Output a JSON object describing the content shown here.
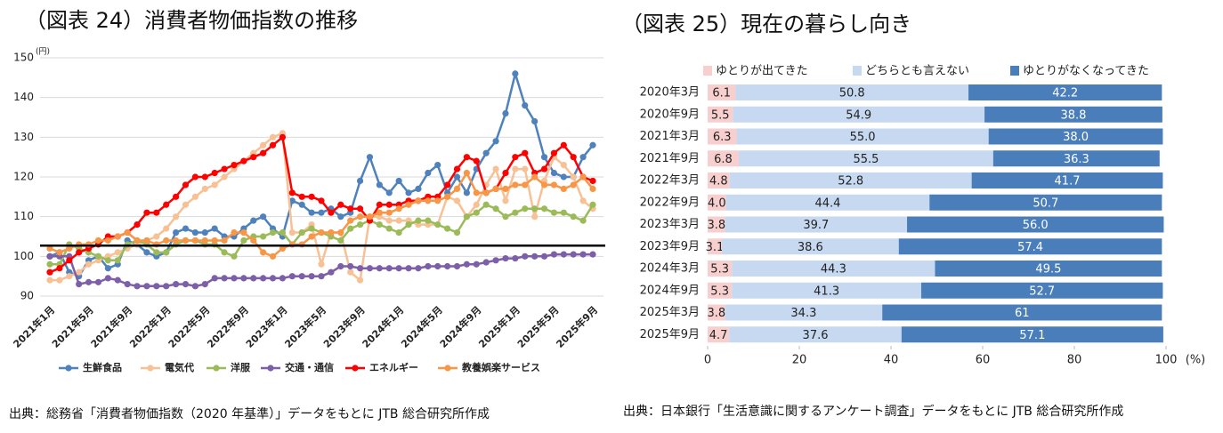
{
  "chart_data": [
    {
      "type": "line",
      "title": "（図表 24）消費者物価指数の推移",
      "note": "出典：総務省「消費者物価指数（2020 年基準）」データをもとに JTB 総合研究所作成",
      "y_unit": "(円)",
      "categories": [
        "2021年1月",
        null,
        null,
        null,
        "2021年5月",
        null,
        null,
        null,
        "2021年9月",
        null,
        null,
        null,
        "2022年1月",
        null,
        null,
        null,
        "2022年5月",
        null,
        null,
        null,
        "2022年9月",
        null,
        null,
        null,
        "2023年1月",
        null,
        null,
        null,
        "2023年5月",
        null,
        null,
        null,
        "2023年9月",
        null,
        null,
        null,
        "2024年1月",
        null,
        null,
        null,
        "2024年5月",
        null,
        null,
        null,
        "2024年9月",
        null,
        null,
        null,
        "2025年1月",
        null,
        null,
        null,
        "2025年5月",
        null,
        null,
        null,
        "2025年9月"
      ],
      "ylim": [
        90,
        150
      ],
      "yticks": [
        90,
        100,
        110,
        120,
        130,
        140,
        150
      ],
      "grid": true,
      "reference_line": 102.7,
      "legend": "bottom",
      "series": [
        {
          "name": "生鮮食品",
          "color": "#4f81bd",
          "values": [
            100,
            101,
            96,
            95,
            99,
            100,
            97,
            98,
            104,
            103,
            101,
            100,
            101,
            106,
            107,
            106,
            106,
            107,
            105,
            105,
            107,
            109,
            110,
            107,
            105,
            114,
            113,
            111,
            111,
            112,
            110,
            111,
            119,
            125,
            118,
            116,
            119,
            116,
            117,
            121,
            123,
            116,
            120,
            116,
            122,
            126,
            129,
            136,
            146,
            138,
            134,
            125,
            121,
            120,
            120,
            125,
            128
          ]
        },
        {
          "name": "電気代",
          "color": "#f7c195",
          "values": [
            94,
            94,
            95,
            96,
            98,
            99,
            100,
            101,
            102,
            103,
            104,
            105,
            107,
            110,
            113,
            115,
            117,
            118,
            120,
            122,
            124,
            126,
            128,
            130,
            131,
            106,
            106,
            108,
            98,
            106,
            106,
            96,
            94,
            110,
            110,
            109,
            109,
            109,
            108,
            108,
            108,
            115,
            114,
            110,
            113,
            118,
            122,
            114,
            122,
            122,
            110,
            119,
            125,
            123,
            120,
            114,
            112
          ]
        },
        {
          "name": "洋服",
          "color": "#9bbb59",
          "values": [
            98,
            98,
            103,
            102,
            101,
            100,
            99,
            99,
            103,
            104,
            103,
            101,
            101,
            103,
            104,
            104,
            103,
            103,
            101,
            100,
            104,
            105,
            105,
            106,
            106,
            103,
            106,
            107,
            106,
            105,
            104,
            107,
            108,
            109,
            108,
            107,
            106,
            108,
            109,
            109,
            108,
            107,
            106,
            110,
            111,
            113,
            112,
            110,
            111,
            112,
            112,
            112,
            111,
            111,
            110,
            109,
            113
          ]
        },
        {
          "name": "交通・通信",
          "color": "#7c5fa8",
          "values": [
            100,
            100,
            100,
            93,
            93.5,
            93.5,
            94.5,
            94,
            93,
            92.5,
            92.5,
            92.5,
            92.5,
            93,
            93,
            92.5,
            93,
            94.5,
            94.5,
            94.5,
            94.5,
            94.5,
            94.5,
            94.5,
            94.5,
            95,
            95,
            95,
            95,
            96,
            97.5,
            97.5,
            97,
            97,
            97,
            97,
            97,
            97,
            97,
            97.5,
            97.5,
            97.5,
            97.5,
            98,
            98,
            98.5,
            99,
            99.5,
            99.5,
            100,
            100,
            100,
            100.5,
            100.5,
            100.5,
            100.5,
            100.5
          ]
        },
        {
          "name": "エネルギー",
          "color": "#ff0000",
          "values": [
            96,
            97,
            99,
            101,
            102,
            103,
            105,
            105,
            106,
            108,
            111,
            111,
            113,
            115,
            118,
            120,
            120,
            121,
            122,
            123,
            124,
            125,
            126,
            128,
            130,
            116,
            115,
            115,
            114,
            111,
            113,
            112,
            112,
            109,
            113,
            113,
            113,
            114,
            114,
            115,
            115,
            118,
            122,
            125,
            124,
            116,
            117,
            121,
            125,
            126,
            121,
            122,
            126,
            128,
            125,
            120,
            119
          ]
        },
        {
          "name": "教養娯楽サービス",
          "color": "#f79646",
          "values": [
            102,
            101,
            102,
            103,
            103,
            104,
            104,
            105,
            106,
            104,
            104,
            103,
            104,
            104,
            104,
            104,
            104,
            104,
            104,
            106,
            106,
            104,
            101,
            100,
            102,
            103,
            103,
            105,
            106,
            106,
            106,
            109,
            110,
            110,
            111,
            111,
            112,
            113,
            114,
            114,
            114,
            115,
            117,
            121,
            116,
            116,
            117,
            117,
            118,
            118,
            120,
            118,
            118,
            117,
            118,
            120,
            117
          ]
        }
      ]
    },
    {
      "type": "bar",
      "orientation": "horizontal",
      "stacked": true,
      "title": "（図表 25）現在の暮らし向き",
      "note": "出典：日本銀行「生活意識に関するアンケート調査」データをもとに JTB 総合研究所作成",
      "x_unit": "(%)",
      "categories": [
        "2020年3月",
        "2020年9月",
        "2021年3月",
        "2021年9月",
        "2022年3月",
        "2022年9月",
        "2023年3月",
        "2023年9月",
        "2024年3月",
        "2024年9月",
        "2025年3月",
        "2025年9月"
      ],
      "xlim": [
        0,
        100
      ],
      "xticks": [
        0,
        20,
        40,
        60,
        80,
        100
      ],
      "legend": "top",
      "series": [
        {
          "name": "ゆとりが出てきた",
          "color": "#f8cfcf",
          "values": [
            6.1,
            5.5,
            6.3,
            6.8,
            4.8,
            4.0,
            3.8,
            3.1,
            5.3,
            5.3,
            3.8,
            4.7
          ],
          "value_labels": [
            "6.1",
            "5.5",
            "6.3",
            "6.8",
            "4.8",
            "4.0",
            "3.8",
            "3.1",
            "5.3",
            "5.3",
            "3.8",
            "4.7"
          ]
        },
        {
          "name": "どちらとも言えない",
          "color": "#c6d9f1",
          "values": [
            50.8,
            54.9,
            55.0,
            55.5,
            52.8,
            44.4,
            39.7,
            38.6,
            44.3,
            41.3,
            34.3,
            37.6
          ],
          "value_labels": [
            "50.8",
            "54.9",
            "55.0",
            "55.5",
            "52.8",
            "44.4",
            "39.7",
            "38.6",
            "44.3",
            "41.3",
            "34.3",
            "37.6"
          ]
        },
        {
          "name": "ゆとりがなくなってきた",
          "color": "#4a7ebb",
          "values": [
            42.2,
            38.8,
            38.0,
            36.3,
            41.7,
            50.7,
            56.0,
            57.4,
            49.5,
            52.7,
            61,
            57.1
          ],
          "value_labels": [
            "42.2",
            "38.8",
            "38.0",
            "36.3",
            "41.7",
            "50.7",
            "56.0",
            "57.4",
            "49.5",
            "52.7",
            "61",
            "57.1"
          ]
        }
      ]
    }
  ]
}
